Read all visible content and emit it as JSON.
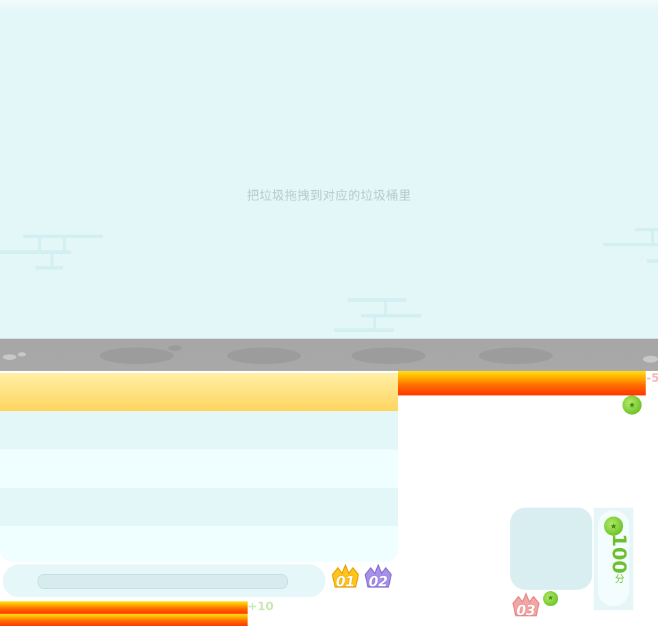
{
  "instruction": "把垃圾拖拽到对应的垃圾桶里",
  "penalty_text": "-5",
  "bonus_text": "+10",
  "score": {
    "value": "100",
    "unit": "分"
  },
  "crowns": [
    "01",
    "02",
    "03"
  ],
  "colors": {
    "sky": "#e3f6f8",
    "road": "#a6a6a6",
    "panel_header": "#ffd45e",
    "fire": "#ff5a00",
    "coin": "#6fc52a",
    "crown_gold": "#ffc51a",
    "crown_purple": "#a892e8",
    "crown_pink": "#f3a6a6"
  },
  "icons": [
    "coin-icon",
    "crown-gold-icon",
    "crown-purple-icon",
    "crown-pink-icon",
    "cloud-outline"
  ]
}
